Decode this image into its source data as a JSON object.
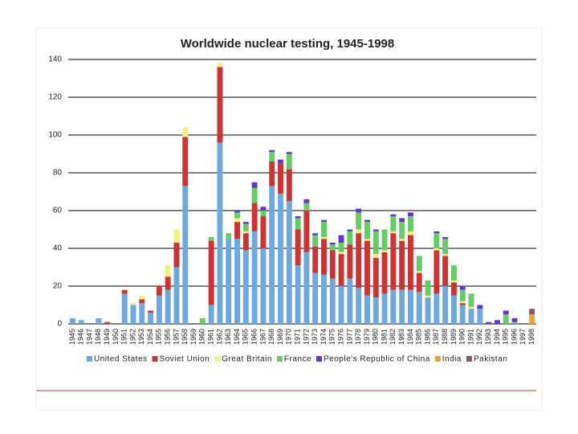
{
  "chart_data": {
    "type": "stacked_bar",
    "title": "Worldwide nuclear testing, 1945-1998",
    "categories": [
      "1945",
      "1946",
      "1947",
      "1948",
      "1949",
      "1950",
      "1951",
      "1952",
      "1953",
      "1954",
      "1955",
      "1956",
      "1957",
      "1958",
      "1959",
      "1960",
      "1961",
      "1962",
      "1963",
      "1964",
      "1965",
      "1966",
      "1967",
      "1968",
      "1969",
      "1970",
      "1971",
      "1972",
      "1973",
      "1974",
      "1975",
      "1976",
      "1977",
      "1978",
      "1979",
      "1980",
      "1981",
      "1982",
      "1983",
      "1984",
      "1985",
      "1986",
      "1987",
      "1988",
      "1989",
      "1990",
      "1991",
      "1992",
      "1993",
      "1994",
      "1995",
      "1996",
      "1997",
      "1998"
    ],
    "series": [
      {
        "name": "United States",
        "color": "#6fa8dc",
        "values": [
          3,
          2,
          0,
          3,
          0,
          0,
          16,
          10,
          11,
          6,
          15,
          18,
          30,
          73,
          0,
          0,
          10,
          96,
          45,
          45,
          39,
          49,
          40,
          73,
          69,
          65,
          31,
          38,
          27,
          26,
          24,
          20,
          24,
          19,
          15,
          14,
          16,
          18,
          18,
          18,
          17,
          14,
          16,
          20,
          15,
          10,
          8,
          8,
          0,
          0,
          0,
          0,
          0,
          0
        ]
      },
      {
        "name": "Soviet Union",
        "color": "#cc3333",
        "values": [
          0,
          0,
          0,
          0,
          1,
          0,
          2,
          0,
          2,
          1,
          5,
          7,
          13,
          26,
          0,
          0,
          34,
          40,
          0,
          9,
          9,
          15,
          17,
          13,
          16,
          17,
          19,
          22,
          14,
          19,
          15,
          17,
          18,
          29,
          29,
          21,
          22,
          30,
          26,
          29,
          10,
          0,
          23,
          16,
          7,
          1,
          0,
          0,
          0,
          0,
          0,
          0,
          0,
          0
        ]
      },
      {
        "name": "Great Britain",
        "color": "#f5f07a",
        "values": [
          0,
          0,
          0,
          0,
          0,
          0,
          0,
          1,
          2,
          0,
          0,
          6,
          7,
          5,
          0,
          0,
          0,
          2,
          0,
          2,
          1,
          0,
          0,
          0,
          0,
          0,
          0,
          0,
          0,
          1,
          0,
          1,
          0,
          2,
          1,
          2,
          1,
          1,
          1,
          2,
          1,
          1,
          1,
          1,
          1,
          1,
          1,
          0,
          0,
          0,
          0,
          0,
          0,
          0
        ]
      },
      {
        "name": "France",
        "color": "#66cc66",
        "values": [
          0,
          0,
          0,
          0,
          0,
          0,
          0,
          0,
          0,
          0,
          0,
          0,
          0,
          0,
          0,
          3,
          2,
          0,
          3,
          3,
          4,
          8,
          3,
          5,
          0,
          8,
          6,
          4,
          6,
          8,
          3,
          5,
          7,
          9,
          9,
          12,
          11,
          8,
          9,
          8,
          8,
          8,
          8,
          8,
          8,
          6,
          7,
          0,
          0,
          0,
          5,
          1,
          0,
          0
        ]
      },
      {
        "name": "People's Republic of China",
        "color": "#6633cc",
        "values": [
          0,
          0,
          0,
          0,
          0,
          0,
          0,
          0,
          0,
          0,
          0,
          0,
          0,
          0,
          0,
          0,
          0,
          0,
          0,
          1,
          1,
          3,
          2,
          1,
          2,
          1,
          1,
          2,
          1,
          1,
          1,
          4,
          1,
          2,
          1,
          1,
          0,
          1,
          2,
          2,
          0,
          0,
          1,
          1,
          0,
          2,
          0,
          2,
          1,
          2,
          2,
          2,
          0,
          0
        ]
      },
      {
        "name": "India",
        "color": "#f0a030",
        "values": [
          0,
          0,
          0,
          0,
          0,
          0,
          0,
          0,
          0,
          0,
          0,
          0,
          0,
          0,
          0,
          0,
          0,
          0,
          0,
          0,
          0,
          0,
          0,
          0,
          0,
          0,
          0,
          0,
          0,
          0,
          0,
          0,
          0,
          0,
          0,
          0,
          0,
          0,
          0,
          0,
          0,
          0,
          0,
          0,
          0,
          0,
          0,
          0,
          0,
          0,
          0,
          0,
          0,
          5
        ]
      },
      {
        "name": "Pakistan",
        "color": "#8b5a5a",
        "values": [
          0,
          0,
          0,
          0,
          0,
          0,
          0,
          0,
          0,
          0,
          0,
          0,
          0,
          0,
          0,
          0,
          0,
          0,
          0,
          0,
          0,
          0,
          0,
          0,
          0,
          0,
          0,
          0,
          0,
          0,
          0,
          0,
          0,
          0,
          0,
          0,
          0,
          0,
          0,
          0,
          0,
          0,
          0,
          0,
          0,
          0,
          0,
          0,
          0,
          0,
          0,
          0,
          0,
          3
        ]
      }
    ],
    "ylim": [
      0,
      140
    ],
    "yticks": [
      0,
      20,
      40,
      60,
      80,
      100,
      120,
      140
    ],
    "grid": true,
    "legend": "bottom"
  }
}
